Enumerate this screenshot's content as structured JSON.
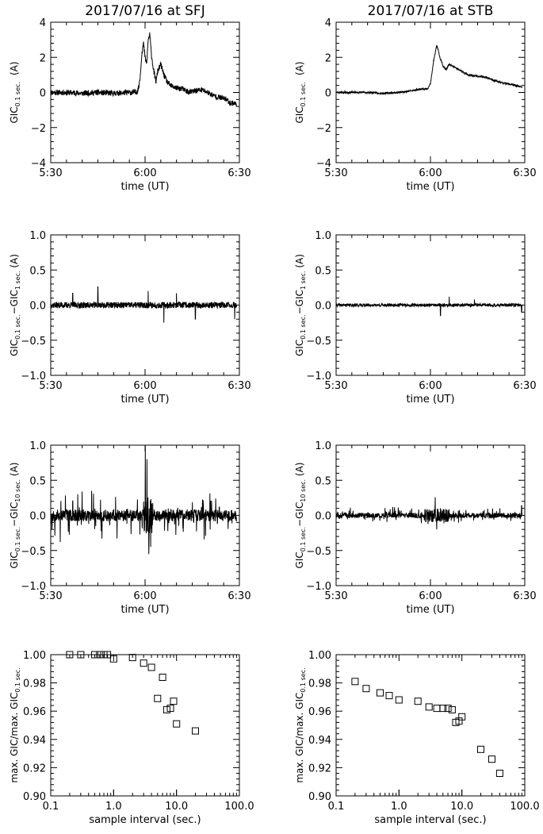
{
  "titles": {
    "left": "2017/07/16 at SFJ",
    "right": "2017/07/16 at STB"
  },
  "chart_data": [
    {
      "id": "a",
      "type": "line",
      "station": "SFJ",
      "ylabel": {
        "base": "GIC",
        "sub": "0.1 sec.",
        "unit": "(A)"
      },
      "xlabel": "time (UT)",
      "xticklabels": [
        "5:30",
        "6:00",
        "6:30"
      ],
      "xlim": [
        0,
        60
      ],
      "ylim": [
        -4,
        4
      ],
      "yticks": [
        -4,
        -2,
        0,
        2,
        4
      ],
      "yticklabels": [
        "−4",
        "−2",
        "0",
        "2",
        "4"
      ],
      "series": [
        {
          "x": [
            0,
            5,
            10,
            15,
            20,
            25,
            26.5,
            27.5,
            28,
            28.5,
            29,
            29.5,
            30,
            30.5,
            31,
            31.5,
            32,
            32.5,
            33,
            33.5,
            34,
            35,
            36,
            37,
            38,
            40,
            42,
            44,
            46,
            48,
            50,
            52,
            54,
            56,
            57,
            58,
            60
          ],
          "y": [
            0,
            0,
            -0.05,
            0,
            -0.05,
            0,
            0,
            0.05,
            0.3,
            1.0,
            2.3,
            2.8,
            2.0,
            1.6,
            3.0,
            3.3,
            2.2,
            1.5,
            1.0,
            0.6,
            1.2,
            1.6,
            1.0,
            0.6,
            0.4,
            0.25,
            0.2,
            0.0,
            0.1,
            0.15,
            0.0,
            -0.2,
            -0.3,
            -0.4,
            -0.6,
            -0.6,
            -0.7
          ],
          "noise": 0.16,
          "seed": 11
        }
      ]
    },
    {
      "id": "b",
      "type": "line",
      "station": "STB",
      "ylabel": {
        "base": "GIC",
        "sub": "0.1 sec.",
        "unit": "(A)"
      },
      "xlabel": "time (UT)",
      "xticklabels": [
        "5:30",
        "6:00",
        "6:30"
      ],
      "xlim": [
        0,
        60
      ],
      "ylim": [
        -4,
        4
      ],
      "yticks": [
        -4,
        -2,
        0,
        2,
        4
      ],
      "yticklabels": [
        "−4",
        "−2",
        "0",
        "2",
        "4"
      ],
      "series": [
        {
          "x": [
            0,
            5,
            10,
            15,
            20,
            24,
            27,
            29,
            30,
            30.5,
            31,
            31.5,
            32,
            32.5,
            33,
            33.5,
            34,
            35,
            36,
            38,
            40,
            42,
            44,
            46,
            48,
            50,
            52,
            54,
            56,
            58,
            60
          ],
          "y": [
            0,
            0,
            0,
            -0.05,
            0,
            0.1,
            0.2,
            0.2,
            0.5,
            1.1,
            1.8,
            2.2,
            2.7,
            2.4,
            2.0,
            1.8,
            1.5,
            1.3,
            1.6,
            1.4,
            1.2,
            1.0,
            0.95,
            0.9,
            0.85,
            0.7,
            0.6,
            0.5,
            0.45,
            0.35,
            0.3
          ],
          "noise": 0.05,
          "seed": 23
        }
      ]
    },
    {
      "id": "c",
      "type": "line",
      "station": "SFJ",
      "ylabel": {
        "base": "GIC",
        "sub": "0.1 sec.",
        "minus": "−GIC",
        "sub2": "1 sec.",
        "unit": "(A)"
      },
      "xlabel": "time (UT)",
      "xticklabels": [
        "5:30",
        "6:00",
        "6:30"
      ],
      "xlim": [
        0,
        60
      ],
      "ylim": [
        -1,
        1
      ],
      "yticks": [
        -1,
        -0.5,
        0,
        0.5,
        1
      ],
      "yticklabels": [
        "−1.0",
        "−0.5",
        "0.0",
        "0.5",
        "1.0"
      ],
      "series": [
        {
          "noise": 0.045,
          "spikes": [
            [
              15,
              0.26
            ],
            [
              36,
              -0.25
            ],
            [
              31,
              0.2
            ],
            [
              46,
              -0.2
            ],
            [
              7,
              0.17
            ],
            [
              58.5,
              -0.2
            ],
            [
              40,
              0.17
            ]
          ],
          "seed": 37
        }
      ]
    },
    {
      "id": "d",
      "type": "line",
      "station": "STB",
      "ylabel": {
        "base": "GIC",
        "sub": "0.1 sec.",
        "minus": "−GIC",
        "sub2": "1 sec.",
        "unit": "(A)"
      },
      "xlabel": "time (UT)",
      "xticklabels": [
        "5:30",
        "6:00",
        "6:30"
      ],
      "xlim": [
        0,
        60
      ],
      "ylim": [
        -1,
        1
      ],
      "yticks": [
        -1,
        -0.5,
        0,
        0.5,
        1
      ],
      "yticklabels": [
        "−1.0",
        "−0.5",
        "0.0",
        "0.5",
        "1.0"
      ],
      "series": [
        {
          "noise": 0.022,
          "spikes": [
            [
              33.2,
              -0.15
            ],
            [
              36,
              0.12
            ],
            [
              59,
              -0.1
            ],
            [
              44,
              0.08
            ]
          ],
          "seed": 41
        }
      ]
    },
    {
      "id": "e",
      "type": "line",
      "station": "SFJ",
      "ylabel": {
        "base": "GIC",
        "sub": "0.1 sec.",
        "minus": "−GIC",
        "sub2": "10 sec.",
        "unit": "(A)"
      },
      "xlabel": "time (UT)",
      "xticklabels": [
        "5:30",
        "6:00",
        "6:30"
      ],
      "xlim": [
        0,
        60
      ],
      "ylim": [
        -1,
        1
      ],
      "yticks": [
        -1,
        -0.5,
        0,
        0.5,
        1
      ],
      "yticklabels": [
        "−1.0",
        "−0.5",
        "0.0",
        "0.5",
        "1.0"
      ],
      "series": [
        {
          "noise": 0.085,
          "spiky": 0.3,
          "burst": [
            29.5,
            32.5,
            0.45
          ],
          "spikes": [
            [
              30.1,
              1.0
            ],
            [
              30.6,
              0.8
            ],
            [
              31.2,
              -0.55
            ],
            [
              31.8,
              -0.45
            ],
            [
              13,
              0.35
            ],
            [
              3,
              -0.38
            ]
          ],
          "seed": 53
        }
      ]
    },
    {
      "id": "f",
      "type": "line",
      "station": "STB",
      "ylabel": {
        "base": "GIC",
        "sub": "0.1 sec.",
        "minus": "−GIC",
        "sub2": "10 sec.",
        "unit": "(A)"
      },
      "xlabel": "time (UT)",
      "xticklabels": [
        "5:30",
        "6:00",
        "6:30"
      ],
      "xlim": [
        0,
        60
      ],
      "ylim": [
        -1,
        1
      ],
      "yticks": [
        -1,
        -0.5,
        0,
        0.5,
        1
      ],
      "yticklabels": [
        "−1.0",
        "−0.5",
        "0.0",
        "0.5",
        "1.0"
      ],
      "series": [
        {
          "noise": 0.035,
          "spiky": 0.09,
          "burst": [
            28,
            36,
            0.12
          ],
          "spikes": [
            [
              31.5,
              0.26
            ],
            [
              32,
              -0.2
            ],
            [
              59,
              0.14
            ],
            [
              18,
              0.12
            ]
          ],
          "seed": 67
        }
      ]
    },
    {
      "id": "g",
      "type": "scatter",
      "station": "SFJ",
      "marker": "open-square",
      "ylabel": {
        "text1": "max. GIC/max. GIC",
        "sub": "0.1 sec."
      },
      "xlabel": "sample interval (sec.)",
      "xscale": "log",
      "xlim": [
        0.1,
        100
      ],
      "xticks": [
        0.1,
        1,
        10,
        100
      ],
      "xticklabels": [
        "0.1",
        "1.0",
        "10.0",
        "100.0"
      ],
      "ylim": [
        0.9,
        1.0
      ],
      "yticks": [
        0.9,
        0.92,
        0.94,
        0.96,
        0.98,
        1.0
      ],
      "yticklabels": [
        "0.90",
        "0.92",
        "0.94",
        "0.96",
        "0.98",
        "1.00"
      ],
      "x": [
        0.2,
        0.3,
        0.5,
        0.6,
        0.7,
        0.8,
        1.0,
        2.0,
        3.0,
        4.0,
        5.0,
        6.0,
        7.0,
        8.0,
        9.0,
        10.0,
        20.0
      ],
      "y": [
        1.0,
        1.0,
        1.0,
        1.0,
        1.0,
        1.0,
        0.997,
        0.998,
        0.994,
        0.991,
        0.969,
        0.984,
        0.961,
        0.962,
        0.967,
        0.951,
        0.946
      ]
    },
    {
      "id": "h",
      "type": "scatter",
      "station": "STB",
      "marker": "open-square",
      "ylabel": {
        "text1": "max. GIC/max. GIC",
        "sub": "0.1 sec."
      },
      "xlabel": "sample interval (sec.)",
      "xscale": "log",
      "xlim": [
        0.1,
        100
      ],
      "xticks": [
        0.1,
        1,
        10,
        100
      ],
      "xticklabels": [
        "0.1",
        "1.0",
        "10.0",
        "100.0"
      ],
      "ylim": [
        0.9,
        1.0
      ],
      "yticks": [
        0.9,
        0.92,
        0.94,
        0.96,
        0.98,
        1.0
      ],
      "yticklabels": [
        "0.90",
        "0.92",
        "0.94",
        "0.96",
        "0.98",
        "1.00"
      ],
      "x": [
        0.2,
        0.3,
        0.5,
        0.7,
        1.0,
        2.0,
        3.0,
        4.0,
        5.0,
        6.0,
        7.0,
        8.0,
        9.0,
        10.0,
        20.0,
        30.0,
        40.0
      ],
      "y": [
        0.981,
        0.976,
        0.973,
        0.971,
        0.968,
        0.967,
        0.963,
        0.962,
        0.962,
        0.962,
        0.961,
        0.952,
        0.953,
        0.956,
        0.933,
        0.926,
        0.916
      ]
    }
  ]
}
